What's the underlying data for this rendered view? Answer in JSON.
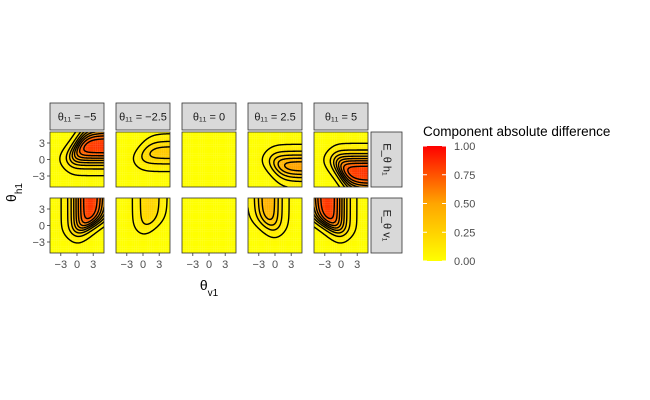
{
  "chart_data": {
    "type": "heatmap",
    "columns": [
      {
        "label": "θ₁₁ = −5",
        "theta11": -5
      },
      {
        "label": "θ₁₁ = −2.5",
        "theta11": -2.5
      },
      {
        "label": "θ₁₁ = 0",
        "theta11": 0
      },
      {
        "label": "θ₁₁ = 2.5",
        "theta11": 2.5
      },
      {
        "label": "θ₁₁ = 5",
        "theta11": 5
      }
    ],
    "rows": [
      {
        "label": "E_θ h₁",
        "key": "h"
      },
      {
        "label": "E_θ v₁",
        "key": "v"
      }
    ],
    "xlabel": "θ_v1",
    "ylabel": "θ_h1",
    "x_ticks": [
      -3,
      0,
      3
    ],
    "y_ticks": [
      3,
      0,
      -3
    ],
    "xlim": [
      -5,
      5
    ],
    "ylim": [
      -5,
      5
    ],
    "legend": {
      "title": "Component absolute difference",
      "ticks": [
        "1.00",
        "0.75",
        "0.50",
        "0.25",
        "0.00"
      ],
      "range": [
        0,
        1
      ],
      "position": "right",
      "colors": {
        "low": "#ffff00",
        "mid": "#ffa500",
        "high": "#ff0000"
      }
    },
    "contour_levels": [
      0.05,
      0.15,
      0.25,
      0.35,
      0.45,
      0.55,
      0.65,
      0.75,
      0.85,
      0.95
    ],
    "contour_color": "#000000",
    "grid": false
  }
}
